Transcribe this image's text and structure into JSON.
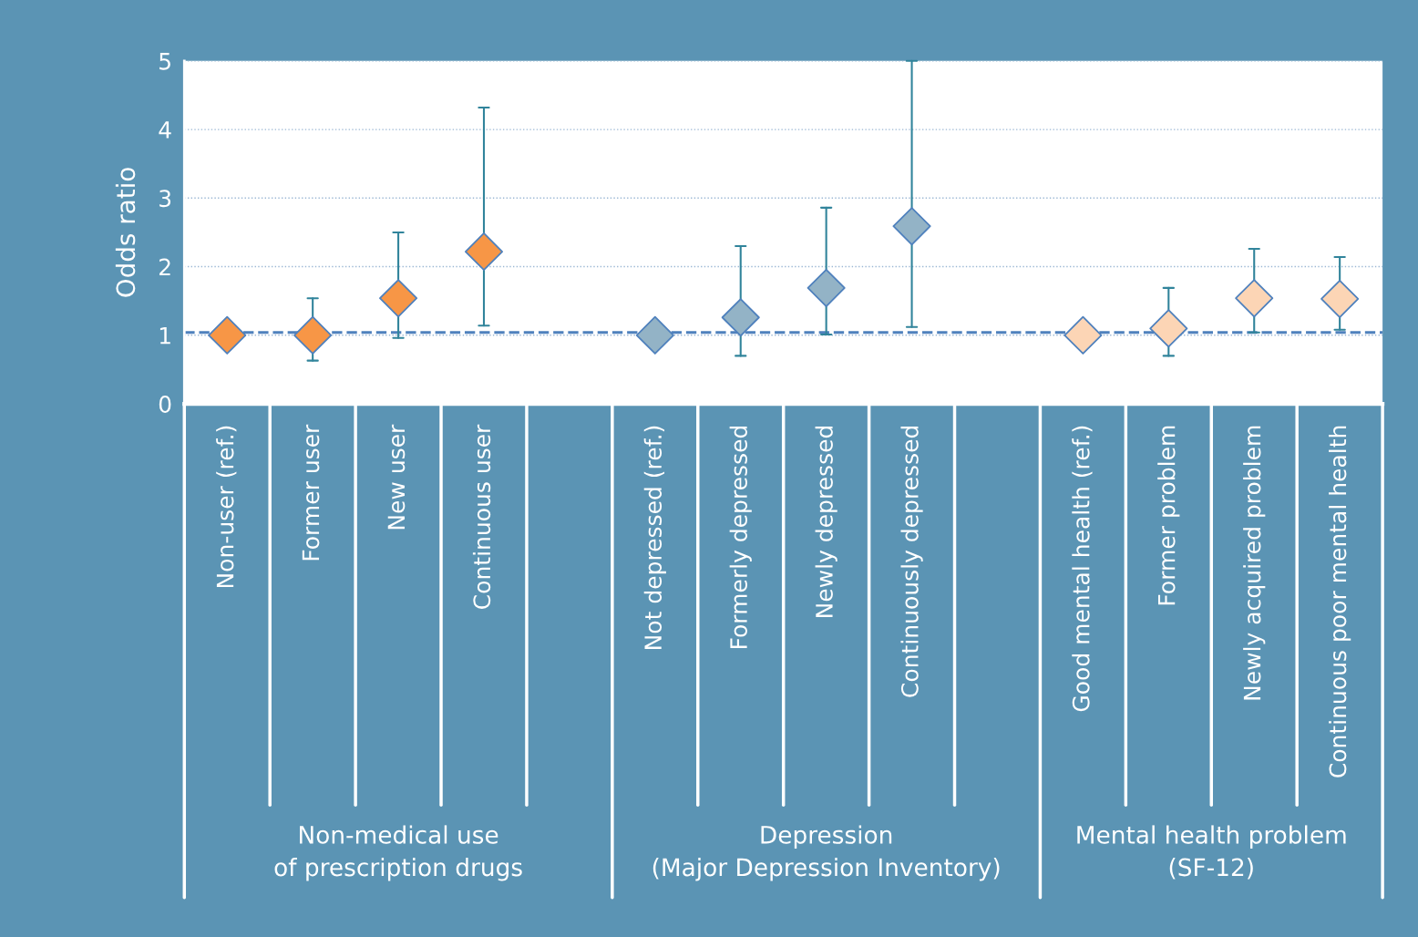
{
  "chart_data": {
    "type": "scatter",
    "ylabel": "Odds ratio",
    "categories": [
      "Non-user (ref.)",
      "Former user",
      "New user",
      "Continuous user",
      null,
      "Not depressed (ref.)",
      "Formerly depressed",
      "Newly depressed",
      "Continuously depressed",
      null,
      "Good mental health (ref.)",
      "Former problem",
      "Newly acquired problem",
      "Continuous poor mental health"
    ],
    "values": [
      1.0,
      1.0,
      1.54,
      2.22,
      null,
      1.0,
      1.26,
      1.69,
      2.59,
      null,
      1.0,
      1.1,
      1.54,
      1.53
    ],
    "errors": [
      null,
      [
        0.63,
        1.54
      ],
      [
        0.96,
        2.5
      ],
      [
        1.14,
        4.32
      ],
      null,
      null,
      [
        0.7,
        2.3
      ],
      [
        1.01,
        2.86
      ],
      [
        1.12,
        5.0
      ],
      null,
      null,
      [
        0.7,
        1.69
      ],
      [
        1.04,
        2.26
      ],
      [
        1.08,
        2.14
      ]
    ],
    "colors": [
      "#f79646",
      "#f79646",
      "#f79646",
      "#f79646",
      "#ffffff",
      "#93b3c6",
      "#93b3c6",
      "#93b3c6",
      "#93b3c6",
      "#ffffff",
      "#fcd5b5",
      "#fcd5b5",
      "#fcd5b5",
      "#fcd5b5"
    ],
    "marker": "diamond",
    "ylim": [
      0,
      5
    ],
    "yticks": [
      0,
      1,
      2,
      3,
      4,
      5
    ],
    "grid": "y",
    "ref_lines": [
      {
        "axis": "y",
        "value": 1.04,
        "color": "#4f81bd",
        "line_style": "dashed"
      }
    ],
    "annotations": [
      "Non-medical use\nof prescription drugs",
      "Depression\n(Major Depression Inventory)",
      "Mental health problem\n(SF-12)"
    ]
  }
}
